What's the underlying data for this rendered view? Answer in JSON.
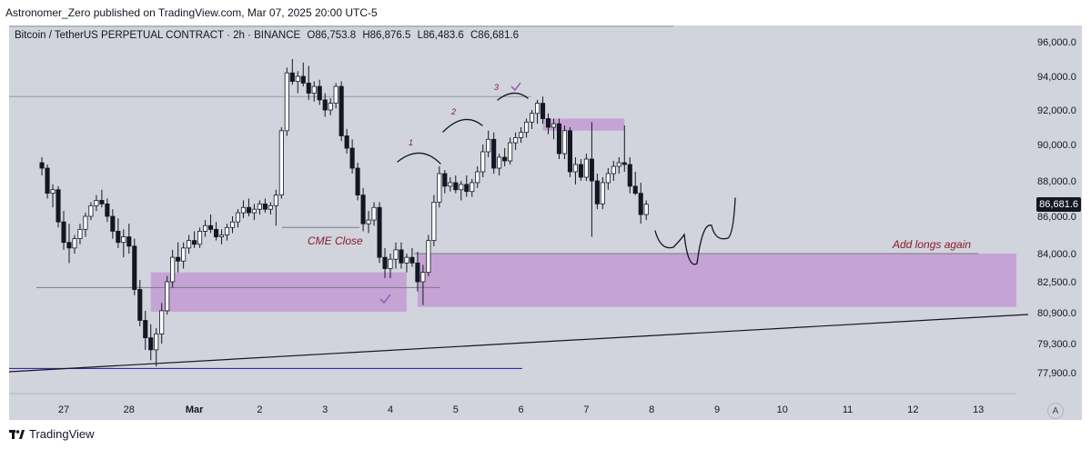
{
  "header": {
    "publisher": "Astronomer_Zero published on TradingView.com, Mar 07, 2025 20:00 UTC-5"
  },
  "symbol": {
    "name": "Bitcoin / TetherUS PERPETUAL CONTRACT · 2h · BINANCE",
    "open": "O86,753.8",
    "high": "H86,876.5",
    "low": "L86,483.6",
    "close": "C86,681.6"
  },
  "colors": {
    "up": "#ffffff",
    "down": "#131722",
    "zone": "#c39bd3",
    "label": "#8b1a2a",
    "trendline": "#131722",
    "support": "#4527a0"
  },
  "chart_data": {
    "type": "candlestick",
    "price_axis": [
      "96,000.0",
      "94,000.0",
      "92,000.0",
      "90,000.0",
      "88,000.0",
      "86,000.0",
      "84,000.0",
      "82,500.0",
      "80,900.0",
      "79,300.0",
      "77,900.0"
    ],
    "time_axis": [
      "27",
      "28",
      "Mar",
      "2",
      "3",
      "4",
      "5",
      "6",
      "7",
      "8",
      "9",
      "10",
      "11",
      "12",
      "13"
    ],
    "last_price": "86,681.6",
    "series": [
      {
        "t": "Feb 26 16:00",
        "o": 89000,
        "h": 89300,
        "l": 88300,
        "c": 88700
      },
      {
        "t": "Feb 26 18:00",
        "o": 88700,
        "h": 88900,
        "l": 87000,
        "c": 87300
      },
      {
        "t": "Feb 26 20:00",
        "o": 87300,
        "h": 87800,
        "l": 86500,
        "c": 87500
      },
      {
        "t": "Feb 26 22:00",
        "o": 87500,
        "h": 87700,
        "l": 85400,
        "c": 85700
      },
      {
        "t": "Feb 27 00:00",
        "o": 85700,
        "h": 86300,
        "l": 84200,
        "c": 84600
      },
      {
        "t": "Feb 27 02:00",
        "o": 84600,
        "h": 85600,
        "l": 83500,
        "c": 84300
      },
      {
        "t": "Feb 27 04:00",
        "o": 84300,
        "h": 85000,
        "l": 84000,
        "c": 84800
      },
      {
        "t": "Feb 27 06:00",
        "o": 84800,
        "h": 85600,
        "l": 84500,
        "c": 85300
      },
      {
        "t": "Feb 27 08:00",
        "o": 85300,
        "h": 86200,
        "l": 84900,
        "c": 86000
      },
      {
        "t": "Feb 27 10:00",
        "o": 86000,
        "h": 86800,
        "l": 85800,
        "c": 86600
      },
      {
        "t": "Feb 27 12:00",
        "o": 86600,
        "h": 87200,
        "l": 86300,
        "c": 86900
      },
      {
        "t": "Feb 27 14:00",
        "o": 86900,
        "h": 87500,
        "l": 86500,
        "c": 86700
      },
      {
        "t": "Feb 27 16:00",
        "o": 86700,
        "h": 87000,
        "l": 85700,
        "c": 86000
      },
      {
        "t": "Feb 27 18:00",
        "o": 86000,
        "h": 86400,
        "l": 84800,
        "c": 85200
      },
      {
        "t": "Feb 27 20:00",
        "o": 85200,
        "h": 85900,
        "l": 84300,
        "c": 84600
      },
      {
        "t": "Feb 27 22:00",
        "o": 84600,
        "h": 85300,
        "l": 83800,
        "c": 84900
      },
      {
        "t": "Feb 28 00:00",
        "o": 84900,
        "h": 85600,
        "l": 84000,
        "c": 84400
      },
      {
        "t": "Feb 28 02:00",
        "o": 84400,
        "h": 84800,
        "l": 81800,
        "c": 82100
      },
      {
        "t": "Feb 28 04:00",
        "o": 82100,
        "h": 82600,
        "l": 80200,
        "c": 80500
      },
      {
        "t": "Feb 28 06:00",
        "o": 80500,
        "h": 81000,
        "l": 79000,
        "c": 79600
      },
      {
        "t": "Feb 28 08:00",
        "o": 79600,
        "h": 80300,
        "l": 78500,
        "c": 79000
      },
      {
        "t": "Feb 28 10:00",
        "o": 79000,
        "h": 80100,
        "l": 78200,
        "c": 79800
      },
      {
        "t": "Feb 28 12:00",
        "o": 79800,
        "h": 81400,
        "l": 79300,
        "c": 81000
      },
      {
        "t": "Feb 28 14:00",
        "o": 81000,
        "h": 82800,
        "l": 80800,
        "c": 82500
      },
      {
        "t": "Feb 28 16:00",
        "o": 82500,
        "h": 84200,
        "l": 82200,
        "c": 83800
      },
      {
        "t": "Feb 28 18:00",
        "o": 83800,
        "h": 84600,
        "l": 83000,
        "c": 83600
      },
      {
        "t": "Feb 28 20:00",
        "o": 83600,
        "h": 84600,
        "l": 83200,
        "c": 84300
      },
      {
        "t": "Feb 28 22:00",
        "o": 84300,
        "h": 85000,
        "l": 84000,
        "c": 84700
      },
      {
        "t": "Mar 01 00:00",
        "o": 84700,
        "h": 85200,
        "l": 84300,
        "c": 84500
      },
      {
        "t": "Mar 01 02:00",
        "o": 84500,
        "h": 85400,
        "l": 84300,
        "c": 85200
      },
      {
        "t": "Mar 01 04:00",
        "o": 85200,
        "h": 85800,
        "l": 84900,
        "c": 85500
      },
      {
        "t": "Mar 01 06:00",
        "o": 85500,
        "h": 86100,
        "l": 85100,
        "c": 85300
      },
      {
        "t": "Mar 01 08:00",
        "o": 85300,
        "h": 85700,
        "l": 84700,
        "c": 84900
      },
      {
        "t": "Mar 01 10:00",
        "o": 84900,
        "h": 85300,
        "l": 84500,
        "c": 85000
      },
      {
        "t": "Mar 01 12:00",
        "o": 85000,
        "h": 85600,
        "l": 84700,
        "c": 85400
      },
      {
        "t": "Mar 01 14:00",
        "o": 85400,
        "h": 86000,
        "l": 85100,
        "c": 85700
      },
      {
        "t": "Mar 01 16:00",
        "o": 85700,
        "h": 86400,
        "l": 85400,
        "c": 86200
      },
      {
        "t": "Mar 01 18:00",
        "o": 86200,
        "h": 86900,
        "l": 85900,
        "c": 86500
      },
      {
        "t": "Mar 01 20:00",
        "o": 86500,
        "h": 87000,
        "l": 86000,
        "c": 86200
      },
      {
        "t": "Mar 01 22:00",
        "o": 86200,
        "h": 86700,
        "l": 85800,
        "c": 86400
      },
      {
        "t": "Mar 02 00:00",
        "o": 86400,
        "h": 86900,
        "l": 86100,
        "c": 86700
      },
      {
        "t": "Mar 02 02:00",
        "o": 86700,
        "h": 87000,
        "l": 86200,
        "c": 86400
      },
      {
        "t": "Mar 02 04:00",
        "o": 86400,
        "h": 86800,
        "l": 86100,
        "c": 86600
      },
      {
        "t": "Mar 02 06:00",
        "o": 86600,
        "h": 87500,
        "l": 85500,
        "c": 87200
      },
      {
        "t": "Mar 02 08:00",
        "o": 87200,
        "h": 91000,
        "l": 87000,
        "c": 90800
      },
      {
        "t": "Mar 02 10:00",
        "o": 90800,
        "h": 94500,
        "l": 90500,
        "c": 94200
      },
      {
        "t": "Mar 02 12:00",
        "o": 94200,
        "h": 95000,
        "l": 93500,
        "c": 93700
      },
      {
        "t": "Mar 02 14:00",
        "o": 93700,
        "h": 94300,
        "l": 93000,
        "c": 94000
      },
      {
        "t": "Mar 02 16:00",
        "o": 94000,
        "h": 94800,
        "l": 93400,
        "c": 93600
      },
      {
        "t": "Mar 02 18:00",
        "o": 93600,
        "h": 94600,
        "l": 92600,
        "c": 93000
      },
      {
        "t": "Mar 02 20:00",
        "o": 93000,
        "h": 93700,
        "l": 92500,
        "c": 93400
      },
      {
        "t": "Mar 02 22:00",
        "o": 93400,
        "h": 93800,
        "l": 92300,
        "c": 92600
      },
      {
        "t": "Mar 03 00:00",
        "o": 92600,
        "h": 93000,
        "l": 91600,
        "c": 92000
      },
      {
        "t": "Mar 03 02:00",
        "o": 92000,
        "h": 92700,
        "l": 91700,
        "c": 92400
      },
      {
        "t": "Mar 03 04:00",
        "o": 92400,
        "h": 93600,
        "l": 92100,
        "c": 93400
      },
      {
        "t": "Mar 03 06:00",
        "o": 93400,
        "h": 93700,
        "l": 90200,
        "c": 90500
      },
      {
        "t": "Mar 03 08:00",
        "o": 90500,
        "h": 90900,
        "l": 89500,
        "c": 89800
      },
      {
        "t": "Mar 03 10:00",
        "o": 89800,
        "h": 90300,
        "l": 88400,
        "c": 88700
      },
      {
        "t": "Mar 03 12:00",
        "o": 88700,
        "h": 89000,
        "l": 86900,
        "c": 87200
      },
      {
        "t": "Mar 03 14:00",
        "o": 87200,
        "h": 87600,
        "l": 85200,
        "c": 85600
      },
      {
        "t": "Mar 03 16:00",
        "o": 85600,
        "h": 86300,
        "l": 85100,
        "c": 85800
      },
      {
        "t": "Mar 03 18:00",
        "o": 85800,
        "h": 86800,
        "l": 85500,
        "c": 86500
      },
      {
        "t": "Mar 03 20:00",
        "o": 86500,
        "h": 86800,
        "l": 83500,
        "c": 83800
      },
      {
        "t": "Mar 03 22:00",
        "o": 83800,
        "h": 84300,
        "l": 82700,
        "c": 83200
      },
      {
        "t": "Mar 04 00:00",
        "o": 83200,
        "h": 84000,
        "l": 82700,
        "c": 83700
      },
      {
        "t": "Mar 04 02:00",
        "o": 83700,
        "h": 84600,
        "l": 83200,
        "c": 84200
      },
      {
        "t": "Mar 04 04:00",
        "o": 84200,
        "h": 84600,
        "l": 83200,
        "c": 83500
      },
      {
        "t": "Mar 04 06:00",
        "o": 83500,
        "h": 84000,
        "l": 83000,
        "c": 83800
      },
      {
        "t": "Mar 04 08:00",
        "o": 83800,
        "h": 84300,
        "l": 83300,
        "c": 83500
      },
      {
        "t": "Mar 04 10:00",
        "o": 83500,
        "h": 84100,
        "l": 82000,
        "c": 82500
      },
      {
        "t": "Mar 04 12:00",
        "o": 82500,
        "h": 83400,
        "l": 81300,
        "c": 83000
      },
      {
        "t": "Mar 04 14:00",
        "o": 83000,
        "h": 85000,
        "l": 82800,
        "c": 84700
      },
      {
        "t": "Mar 04 16:00",
        "o": 84700,
        "h": 87200,
        "l": 84400,
        "c": 86800
      },
      {
        "t": "Mar 04 18:00",
        "o": 86800,
        "h": 88800,
        "l": 86500,
        "c": 88400
      },
      {
        "t": "Mar 04 20:00",
        "o": 88400,
        "h": 88600,
        "l": 87300,
        "c": 87700
      },
      {
        "t": "Mar 04 22:00",
        "o": 87700,
        "h": 88200,
        "l": 87400,
        "c": 87900
      },
      {
        "t": "Mar 05 00:00",
        "o": 87900,
        "h": 88300,
        "l": 87300,
        "c": 87500
      },
      {
        "t": "Mar 05 02:00",
        "o": 87500,
        "h": 88000,
        "l": 86900,
        "c": 87800
      },
      {
        "t": "Mar 05 04:00",
        "o": 87800,
        "h": 88300,
        "l": 87100,
        "c": 87400
      },
      {
        "t": "Mar 05 06:00",
        "o": 87400,
        "h": 88100,
        "l": 87100,
        "c": 87900
      },
      {
        "t": "Mar 05 08:00",
        "o": 87900,
        "h": 88800,
        "l": 87600,
        "c": 88500
      },
      {
        "t": "Mar 05 10:00",
        "o": 88500,
        "h": 90000,
        "l": 88200,
        "c": 89600
      },
      {
        "t": "Mar 05 12:00",
        "o": 89600,
        "h": 90800,
        "l": 89300,
        "c": 90300
      },
      {
        "t": "Mar 05 14:00",
        "o": 90300,
        "h": 90700,
        "l": 88400,
        "c": 88700
      },
      {
        "t": "Mar 05 16:00",
        "o": 88700,
        "h": 89500,
        "l": 88300,
        "c": 89300
      },
      {
        "t": "Mar 05 18:00",
        "o": 89300,
        "h": 89800,
        "l": 88800,
        "c": 89100
      },
      {
        "t": "Mar 05 20:00",
        "o": 89100,
        "h": 90400,
        "l": 88900,
        "c": 90100
      },
      {
        "t": "Mar 05 22:00",
        "o": 90100,
        "h": 90700,
        "l": 89700,
        "c": 90400
      },
      {
        "t": "Mar 06 00:00",
        "o": 90400,
        "h": 91000,
        "l": 90100,
        "c": 90700
      },
      {
        "t": "Mar 06 02:00",
        "o": 90700,
        "h": 91500,
        "l": 90400,
        "c": 91300
      },
      {
        "t": "Mar 06 04:00",
        "o": 91300,
        "h": 92000,
        "l": 90900,
        "c": 91800
      },
      {
        "t": "Mar 06 06:00",
        "o": 91800,
        "h": 92600,
        "l": 91200,
        "c": 92400
      },
      {
        "t": "Mar 06 08:00",
        "o": 92400,
        "h": 92800,
        "l": 91200,
        "c": 91500
      },
      {
        "t": "Mar 06 10:00",
        "o": 91500,
        "h": 91800,
        "l": 90600,
        "c": 91000
      },
      {
        "t": "Mar 06 12:00",
        "o": 91000,
        "h": 91500,
        "l": 90300,
        "c": 91200
      },
      {
        "t": "Mar 06 14:00",
        "o": 91200,
        "h": 91500,
        "l": 89200,
        "c": 89500
      },
      {
        "t": "Mar 06 16:00",
        "o": 89500,
        "h": 91100,
        "l": 89200,
        "c": 90800
      },
      {
        "t": "Mar 06 18:00",
        "o": 90800,
        "h": 91000,
        "l": 88200,
        "c": 88500
      },
      {
        "t": "Mar 06 20:00",
        "o": 88500,
        "h": 89300,
        "l": 87800,
        "c": 88900
      },
      {
        "t": "Mar 06 22:00",
        "o": 88900,
        "h": 89200,
        "l": 88000,
        "c": 88200
      },
      {
        "t": "Mar 07 00:00",
        "o": 88200,
        "h": 89500,
        "l": 88000,
        "c": 89200
      },
      {
        "t": "Mar 07 02:00",
        "o": 89200,
        "h": 91300,
        "l": 84900,
        "c": 88000
      },
      {
        "t": "Mar 07 04:00",
        "o": 88000,
        "h": 88400,
        "l": 86400,
        "c": 86700
      },
      {
        "t": "Mar 07 06:00",
        "o": 86700,
        "h": 88200,
        "l": 86400,
        "c": 87900
      },
      {
        "t": "Mar 07 08:00",
        "o": 87900,
        "h": 88700,
        "l": 87500,
        "c": 88400
      },
      {
        "t": "Mar 07 10:00",
        "o": 88400,
        "h": 89100,
        "l": 88000,
        "c": 88800
      },
      {
        "t": "Mar 07 12:00",
        "o": 88800,
        "h": 89300,
        "l": 88400,
        "c": 89000
      },
      {
        "t": "Mar 07 14:00",
        "o": 89000,
        "h": 91100,
        "l": 88500,
        "c": 88900
      },
      {
        "t": "Mar 07 16:00",
        "o": 88900,
        "h": 89300,
        "l": 87300,
        "c": 87700
      },
      {
        "t": "Mar 07 18:00",
        "o": 87700,
        "h": 88500,
        "l": 87200,
        "c": 87300
      },
      {
        "t": "Mar 07 20:00",
        "o": 87300,
        "h": 87900,
        "l": 85600,
        "c": 86100
      },
      {
        "t": "Mar 07 22:00",
        "o": 86100,
        "h": 86900,
        "l": 85800,
        "c": 86682
      }
    ],
    "levels": [
      {
        "price": 92800
      },
      {
        "price": 85400
      },
      {
        "price": 82200
      },
      {
        "price": 84000
      },
      {
        "price": 78100
      }
    ],
    "zones": [
      {
        "from": "Feb 28 08:00",
        "to": "Mar 04 06:00",
        "low": 80950,
        "high": 83000
      },
      {
        "from": "Mar 04 10:00",
        "to": "Mar 13 14:00",
        "low": 81200,
        "high": 84000
      },
      {
        "from": "Mar 06 08:00",
        "to": "Mar 07 14:00",
        "low": 90800,
        "high": 91500
      }
    ],
    "annotations": [
      "CME Close",
      "Add longs again",
      "1",
      "2",
      "3"
    ]
  }
}
